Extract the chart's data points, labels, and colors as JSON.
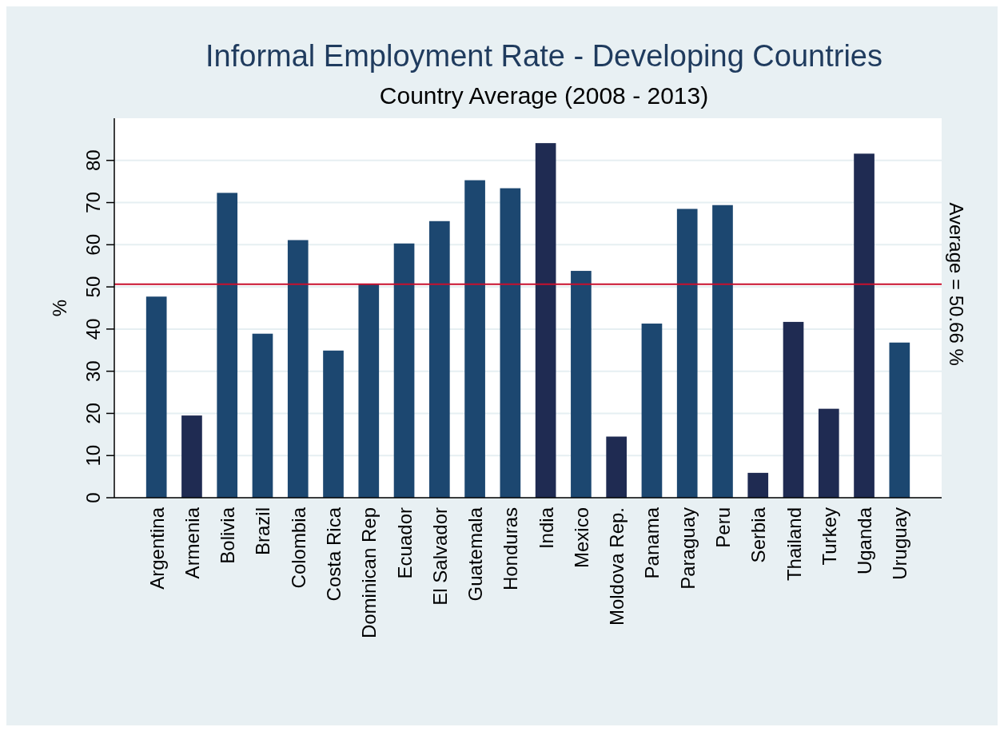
{
  "chart_data": {
    "type": "bar",
    "title": "Informal Employment Rate - Developing Countries",
    "subtitle": "Country Average (2008 - 2013)",
    "ylabel": "%",
    "categories": [
      "Argentina",
      "Armenia",
      "Bolivia",
      "Brazil",
      "Colombia",
      "Costa Rica",
      "Dominican Rep",
      "Ecuador",
      "El Salvador",
      "Guatemala",
      "Honduras",
      "India",
      "Mexico",
      "Moldova Rep.",
      "Panama",
      "Paraguay",
      "Peru",
      "Serbia",
      "Thailand",
      "Turkey",
      "Uganda",
      "Uruguay"
    ],
    "values": [
      47.7,
      19.5,
      72.3,
      38.9,
      61.1,
      34.9,
      50.6,
      60.3,
      65.6,
      75.3,
      73.4,
      84.1,
      53.8,
      14.5,
      41.3,
      68.5,
      69.4,
      5.9,
      41.7,
      21.1,
      81.6,
      36.8
    ],
    "colors": [
      "#1c4770",
      "#1f2b52",
      "#1c4770",
      "#1c4770",
      "#1c4770",
      "#1c4770",
      "#1c4770",
      "#1c4770",
      "#1c4770",
      "#1c4770",
      "#1c4770",
      "#1f2b52",
      "#1c4770",
      "#1f2b52",
      "#1c4770",
      "#1c4770",
      "#1c4770",
      "#1f2b52",
      "#1f2b52",
      "#1f2b52",
      "#1f2b52",
      "#1c4770"
    ],
    "ylim": [
      0,
      90
    ],
    "yticks": [
      0,
      10,
      20,
      30,
      40,
      50,
      60,
      70,
      80
    ],
    "grid": "y",
    "ref_lines": [
      {
        "axis": "y",
        "value": 50.66,
        "label": "Average = 50.66 %",
        "color": "#c8102e"
      }
    ]
  }
}
